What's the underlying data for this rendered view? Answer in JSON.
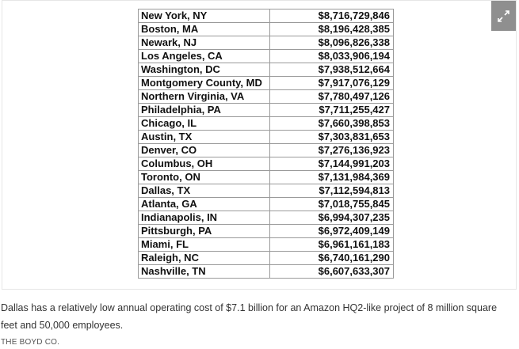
{
  "table": {
    "rows": [
      {
        "city": "New York, NY",
        "cost": "$8,716,729,846"
      },
      {
        "city": "Boston, MA",
        "cost": "$8,196,428,385"
      },
      {
        "city": "Newark, NJ",
        "cost": "$8,096,826,338"
      },
      {
        "city": "Los Angeles, CA",
        "cost": "$8,033,906,194"
      },
      {
        "city": "Washington, DC",
        "cost": "$7,938,512,664"
      },
      {
        "city": "Montgomery County, MD",
        "cost": "$7,917,076,129"
      },
      {
        "city": "Northern Virginia, VA",
        "cost": "$7,780,497,126"
      },
      {
        "city": "Philadelphia, PA",
        "cost": "$7,711,255,427"
      },
      {
        "city": "Chicago, IL",
        "cost": "$7,660,398,853"
      },
      {
        "city": "Austin, TX",
        "cost": "$7,303,831,653"
      },
      {
        "city": "Denver, CO",
        "cost": "$7,276,136,923"
      },
      {
        "city": "Columbus, OH",
        "cost": "$7,144,991,203"
      },
      {
        "city": "Toronto, ON",
        "cost": "$7,131,984,369"
      },
      {
        "city": "Dallas, TX",
        "cost": "$7,112,594,813"
      },
      {
        "city": "Atlanta, GA",
        "cost": "$7,018,755,845"
      },
      {
        "city": "Indianapolis, IN",
        "cost": "$6,994,307,235"
      },
      {
        "city": "Pittsburgh, PA",
        "cost": "$6,972,409,149"
      },
      {
        "city": "Miami, FL",
        "cost": "$6,961,161,183"
      },
      {
        "city": "Raleigh, NC",
        "cost": "$6,740,161,290"
      },
      {
        "city": "Nashville, TN",
        "cost": "$6,607,633,307"
      }
    ]
  },
  "caption": "Dallas has a relatively low annual operating cost of $7.1 billion for an Amazon HQ2-like project of 8 million square feet and 50,000 employees.",
  "credit": "THE BOYD CO.",
  "expand_icon": "expand-arrows-icon",
  "colors": {
    "expand_button_bg": "#8f8f8f",
    "table_border": "#9a9a9a",
    "caption_text": "#333333"
  }
}
